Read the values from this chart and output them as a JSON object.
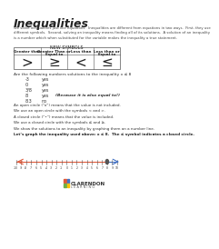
{
  "title": "Inequalities",
  "body_text": "We solve inequalities just like equations.  Inequalities are different from equations in two ways.  First, they use\ndifferent symbols.  Second, solving an inequality means finding all of its solutions.  A solution of an inequality\nis a number which when substituted for the variable makes the inequality a true statement.",
  "new_symbols": "NEW SYMBOLS",
  "table_headers": [
    "Greater than",
    "Greater Than or\nEqual to",
    "Less than",
    "Less than or\nEqual to"
  ],
  "table_symbols": [
    ">",
    "≥",
    "<",
    "≤"
  ],
  "q_text": "Are the following numbers solutions to the inequality x ≤ 8",
  "qa_rows": [
    [
      "-3",
      "yes",
      ""
    ],
    [
      "0",
      "yes",
      ""
    ],
    [
      "3/8",
      "yes",
      ""
    ],
    [
      "8",
      "yes",
      "(Because it is also equal to!)"
    ],
    [
      "8.3",
      "no",
      ""
    ]
  ],
  "open_circle_text": "An open circle (“o”) means that the value is not included.",
  "open_circle_use": "We use an open circle with the symbols < and >.",
  "closed_circle_text": "A closed circle (“•”) means that the value is included.",
  "closed_circle_use": "We use a closed circle with the symbols ≤ and ≥.",
  "graph_intro": "We show the solutions to an inequality by graphing them on a number line.",
  "graph_bold": "Let’s graph the inequality used above: x ≤ 8.  The ≤ symbol indicates a closed circle.",
  "number_line_min": -10,
  "number_line_max": 10,
  "closed_circle_val": 8,
  "arrow_color": "#e05a3a",
  "arrow_right_color": "#4472c4",
  "background_color": "#ffffff",
  "logo_text_line1": "CLARENDON",
  "logo_text_line2": "L E A R N I N G",
  "table_border_color": "#555555",
  "logo_colors": [
    "#e05a3a",
    "#4472c4",
    "#70ad47",
    "#ffc000"
  ]
}
